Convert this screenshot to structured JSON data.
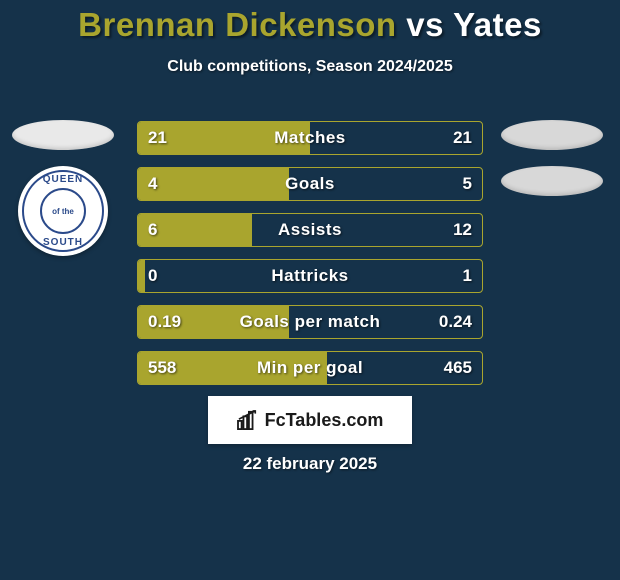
{
  "background_color": "#15324a",
  "accent_color": "#a9a52e",
  "text_color": "#ffffff",
  "title": {
    "player1": "Brennan Dickenson",
    "vs": "vs",
    "player2": "Yates",
    "player1_color": "#a9a52e",
    "player2_color": "#ffffff",
    "fontsize": 33
  },
  "subtitle": "Club competitions, Season 2024/2025",
  "left_badge": {
    "top_text": "QUEEN",
    "bottom_text": "SOUTH",
    "center_text": "of the"
  },
  "stats": {
    "type": "comparison-bars",
    "bar_border_color": "#a9a52e",
    "left_fill_color": "#a9a52e",
    "label_fontsize": 17,
    "value_fontsize": 17,
    "rows": [
      {
        "label": "Matches",
        "left": "21",
        "right": "21",
        "left_fill_pct": 50
      },
      {
        "label": "Goals",
        "left": "4",
        "right": "5",
        "left_fill_pct": 44
      },
      {
        "label": "Assists",
        "left": "6",
        "right": "12",
        "left_fill_pct": 33
      },
      {
        "label": "Hattricks",
        "left": "0",
        "right": "1",
        "left_fill_pct": 2
      },
      {
        "label": "Goals per match",
        "left": "0.19",
        "right": "0.24",
        "left_fill_pct": 44
      },
      {
        "label": "Min per goal",
        "left": "558",
        "right": "465",
        "left_fill_pct": 55
      }
    ]
  },
  "attribution": "FcTables.com",
  "date": "22 february 2025"
}
